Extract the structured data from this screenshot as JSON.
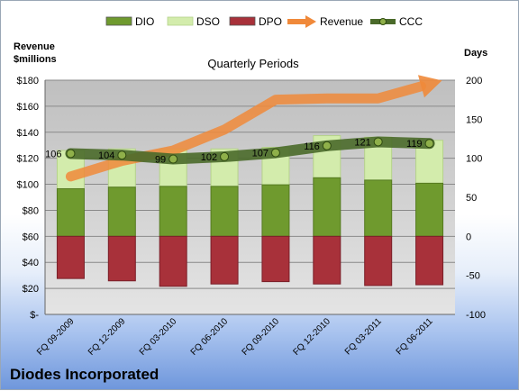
{
  "company": "Diodes Incorporated",
  "left_axis_title": [
    "Revenue",
    "$millions"
  ],
  "right_axis_title": "Days",
  "periods_label": "Quarterly Periods",
  "chart_data": {
    "type": "bar",
    "categories": [
      "FQ 09-2009",
      "FQ 12-2009",
      "FQ 03-2010",
      "FQ 06-2010",
      "FQ 09-2010",
      "FQ 12-2010",
      "FQ 03-2011",
      "FQ 06-2011"
    ],
    "series": [
      {
        "name": "DIO",
        "axis": "days",
        "kind": "stacked-bar",
        "color": "#6f9a2e",
        "values": [
          61,
          63,
          64,
          64,
          66,
          75,
          72,
          68
        ]
      },
      {
        "name": "DSO",
        "axis": "days",
        "kind": "stacked-bar",
        "color": "#d3ecac",
        "values": [
          49,
          49,
          48,
          48,
          48,
          54,
          55,
          55
        ]
      },
      {
        "name": "DPO",
        "axis": "days",
        "kind": "bar-below-zero",
        "color": "#a8313a",
        "values": [
          -54,
          -57,
          -64,
          -61,
          -58,
          -61,
          -63,
          -62
        ]
      },
      {
        "name": "Revenue",
        "axis": "revenue",
        "kind": "line",
        "color": "#f0893a",
        "values": [
          106,
          118,
          126,
          142,
          165,
          166,
          166,
          177
        ]
      },
      {
        "name": "CCC",
        "axis": "days",
        "kind": "line",
        "color": "#4a6a2a",
        "values": [
          106,
          104,
          99,
          102,
          107,
          116,
          121,
          119
        ]
      }
    ],
    "data_labels": [
      "106",
      "104",
      "99",
      "102",
      "107",
      "116",
      "121",
      "119"
    ],
    "y_left": {
      "ylim": [
        0,
        180
      ],
      "ticks": [
        "$-",
        "$20",
        "$40",
        "$60",
        "$80",
        "$100",
        "$120",
        "$140",
        "$160",
        "$180"
      ]
    },
    "y_right": {
      "ylim": [
        -100,
        200
      ],
      "ticks": [
        "-100",
        "-50",
        "0",
        "50",
        "100",
        "150",
        "200"
      ]
    },
    "grid": true,
    "legend_position": "top"
  }
}
